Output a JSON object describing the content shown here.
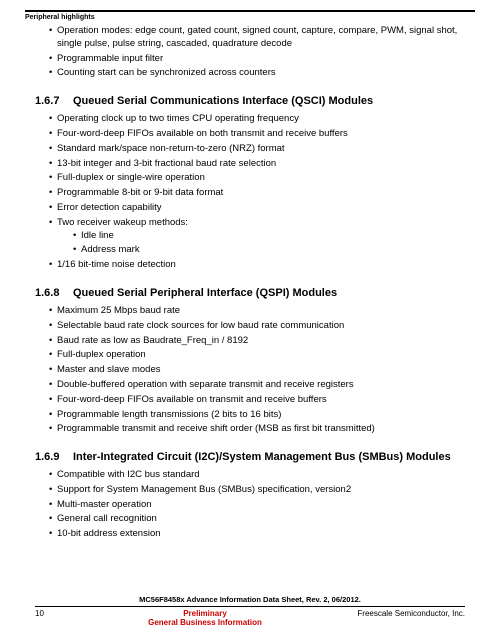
{
  "header": {
    "label": "Peripheral highlights"
  },
  "intro_bullets": {
    "b1": "Operation modes: edge count, gated count, signed count, capture, compare, PWM, signal shot, single pulse, pulse string, cascaded, quadrature decode",
    "b2": "Programmable input filter",
    "b3": "Counting start can be synchronized across counters"
  },
  "section1": {
    "number": "1.6.7",
    "title": "Queued Serial Communications Interface (QSCI) Modules",
    "bullets": {
      "b1": "Operating clock up to two times CPU operating frequency",
      "b2": "Four-word-deep FIFOs available on both transmit and receive buffers",
      "b3": "Standard mark/space non-return-to-zero (NRZ) format",
      "b4": "13-bit integer and 3-bit fractional baud rate selection",
      "b5": "Full-duplex or single-wire operation",
      "b6": "Programmable 8-bit or 9-bit data format",
      "b7": "Error detection capability",
      "b8": "Two receiver wakeup methods:",
      "b8a": "Idle line",
      "b8b": "Address mark",
      "b9": "1/16 bit-time noise detection"
    }
  },
  "section2": {
    "number": "1.6.8",
    "title": "Queued Serial Peripheral Interface (QSPI) Modules",
    "bullets": {
      "b1": "Maximum 25 Mbps baud rate",
      "b2": "Selectable baud rate clock sources for low baud rate communication",
      "b3": "Baud rate as low as Baudrate_Freq_in / 8192",
      "b4": "Full-duplex operation",
      "b5": "Master and slave modes",
      "b6": "Double-buffered operation with separate transmit and receive registers",
      "b7": "Four-word-deep FIFOs available on transmit and receive buffers",
      "b8": "Programmable length transmissions (2 bits to 16 bits)",
      "b9": "Programmable transmit and receive shift order (MSB as first bit transmitted)"
    }
  },
  "section3": {
    "number": "1.6.9",
    "title": "Inter-Integrated Circuit (I2C)/System Management Bus (SMBus) Modules",
    "bullets": {
      "b1": "Compatible with I2C bus standard",
      "b2": "Support for System Management Bus (SMBus) specification, version2",
      "b3": "Multi-master operation",
      "b4": "General call recognition",
      "b5": "10-bit address extension"
    }
  },
  "footer": {
    "doc_title": "MC56F8458x Advance Information Data Sheet, Rev. 2, 06/2012.",
    "page": "10",
    "preliminary": "Preliminary",
    "gbi": "General Business Information",
    "company": "Freescale Semiconductor, Inc."
  },
  "colors": {
    "text": "#000000",
    "red": "#cc0000",
    "background": "#ffffff"
  }
}
